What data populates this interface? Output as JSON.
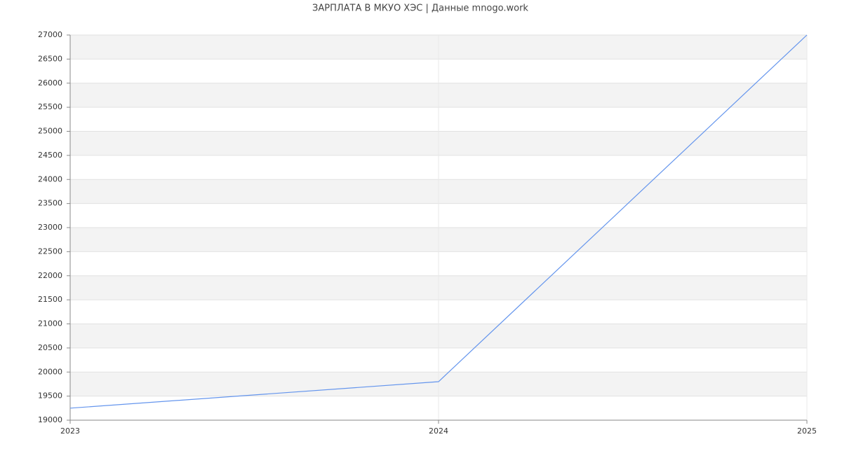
{
  "chart_data": {
    "type": "line",
    "title": "ЗАРПЛАТА В МКУО ХЭС | Данные mnogo.work",
    "x": [
      2023,
      2024,
      2025
    ],
    "series": [
      {
        "name": "ЗАРПЛАТА",
        "color": "#6495ed",
        "values": [
          19250,
          19800,
          27000
        ]
      }
    ],
    "xlim": [
      2023,
      2025
    ],
    "xticks": [
      2023,
      2024,
      2025
    ],
    "ylim": [
      19000,
      27000
    ],
    "yticks": [
      19000,
      19500,
      20000,
      20500,
      21000,
      21500,
      22000,
      22500,
      23000,
      23500,
      24000,
      24500,
      25000,
      25500,
      26000,
      26500,
      27000
    ],
    "grid": true,
    "band_color": "#f3f3f3"
  }
}
